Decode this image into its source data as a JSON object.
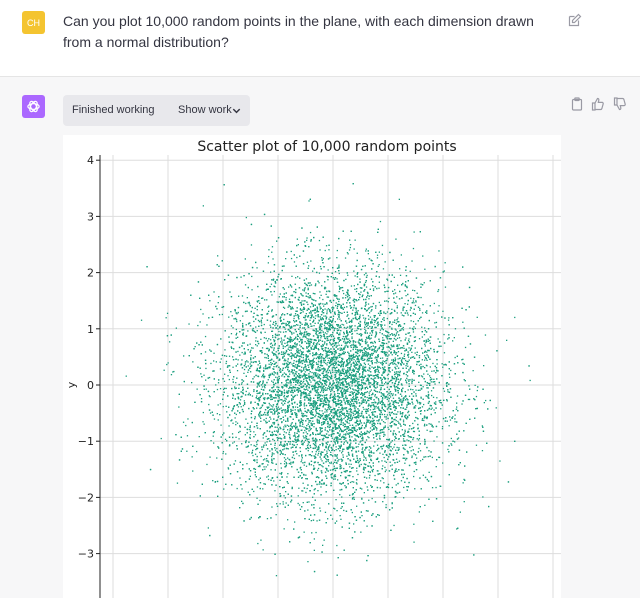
{
  "user": {
    "avatar_initials": "CH",
    "message": "Can you plot 10,000 random points in the plane, with each dimension drawn from a normal distribution?"
  },
  "assistant": {
    "status": "Finished working",
    "show_work": "Show work"
  },
  "icons": {
    "edit": "edit-icon",
    "copy": "clipboard-icon",
    "thumbs_up": "thumbs-up-icon",
    "thumbs_down": "thumbs-down-icon",
    "chevron": "chevron-down-icon",
    "assistant_logo": "openai-logo-icon"
  },
  "colors": {
    "user_avatar": "#f4c430",
    "assistant_avatar": "#ab68ff",
    "points": "#1a9e7e"
  },
  "chart_data": {
    "type": "scatter",
    "title": "Scatter plot of 10,000 random points",
    "ylabel": "y",
    "xlabel": "",
    "n_points": 10000,
    "distribution": "x ~ N(0,1), y ~ N(0,1)",
    "y_ticks": [
      "4",
      "3",
      "2",
      "1",
      "0",
      "−1",
      "−2",
      "−3"
    ],
    "y_tick_values": [
      4,
      3,
      2,
      1,
      0,
      -1,
      -2,
      -3
    ],
    "x_grid_values": [
      -4,
      -3,
      -2,
      -1,
      0,
      1,
      2,
      3,
      4
    ],
    "xlim": [
      -4.2,
      4.2
    ],
    "ylim": [
      -3.5,
      4.15
    ],
    "grid": true,
    "series": [
      {
        "color": "#1a9e7e",
        "marker": "dot"
      }
    ]
  }
}
